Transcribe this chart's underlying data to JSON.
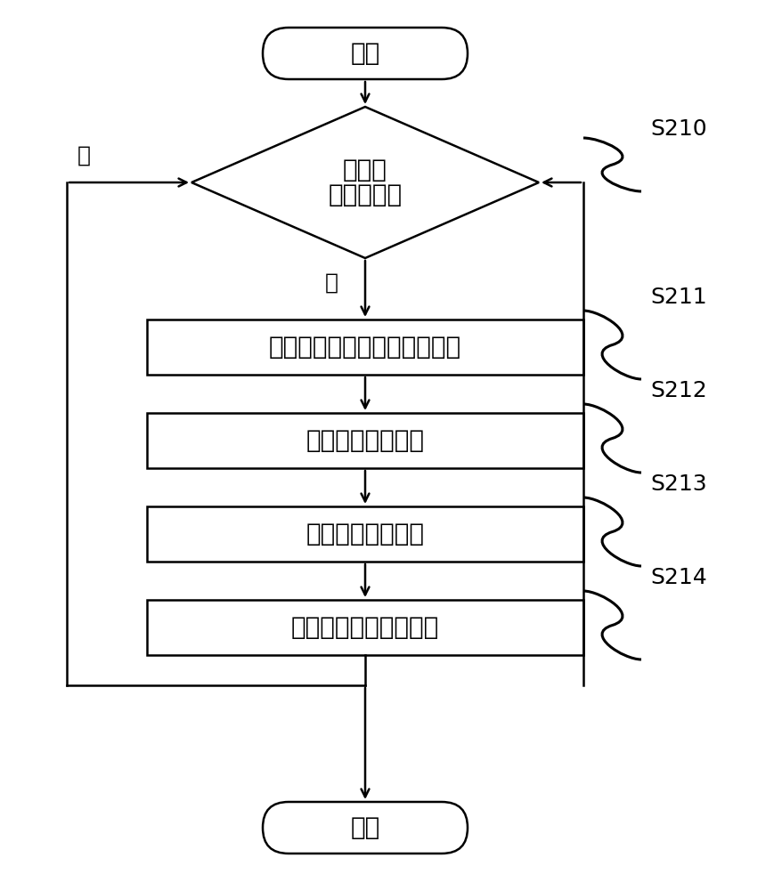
{
  "bg_color": "#ffffff",
  "line_color": "#000000",
  "box_fill": "#ffffff",
  "text_color": "#000000",
  "start_end_text": [
    "开始",
    "结束"
  ],
  "diamond_lines": [
    "是否有加载",
    "配置项"
  ],
  "box_texts": [
    "载入该项敏感数据的识别配置",
    "载入加扰运算配置",
    "载入加密运算配置",
    "添加新的配置项到系统"
  ],
  "labels": [
    "S210",
    "S211",
    "S212",
    "S213",
    "S214"
  ],
  "no_label": "否",
  "yes_label": "是",
  "font_size_main": 20,
  "font_size_label": 18,
  "font_size_yn": 18,
  "lw": 1.8
}
